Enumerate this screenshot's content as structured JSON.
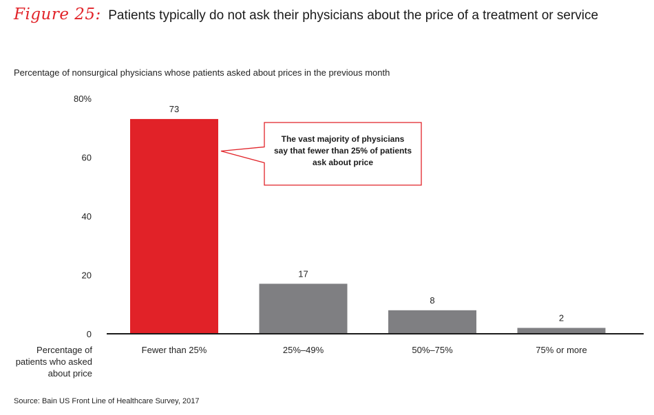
{
  "figure": {
    "label": "Figure 25:",
    "title": "Patients typically do not ask their physicians about the price of a treatment or service"
  },
  "subtitle": "Percentage of nonsurgical physicians whose patients asked about prices in the previous month",
  "source": "Source: Bain US Front Line of Healthcare Survey, 2017",
  "colors": {
    "highlight": "#e12228",
    "bar": "#7f7f82",
    "axis": "#1a1a1a",
    "text": "#222222"
  },
  "chart_data": {
    "type": "bar",
    "categories": [
      "Fewer than 25%",
      "25%–49%",
      "50%–75%",
      "75% or more"
    ],
    "values": [
      73,
      17,
      8,
      2
    ],
    "highlight_index": 0,
    "ylim": [
      0,
      80
    ],
    "yticks": [
      "0",
      "20",
      "40",
      "60",
      "80%"
    ],
    "ytick_values": [
      0,
      20,
      40,
      60,
      80
    ],
    "xlabel": [
      "Percentage of",
      "patients who asked",
      "about price"
    ],
    "ylabel": "",
    "grid": false,
    "annotation": {
      "lines": [
        "The vast majority of physicians",
        "say that fewer than 25% of patients",
        "ask about price"
      ],
      "points_to_index": 0
    }
  }
}
